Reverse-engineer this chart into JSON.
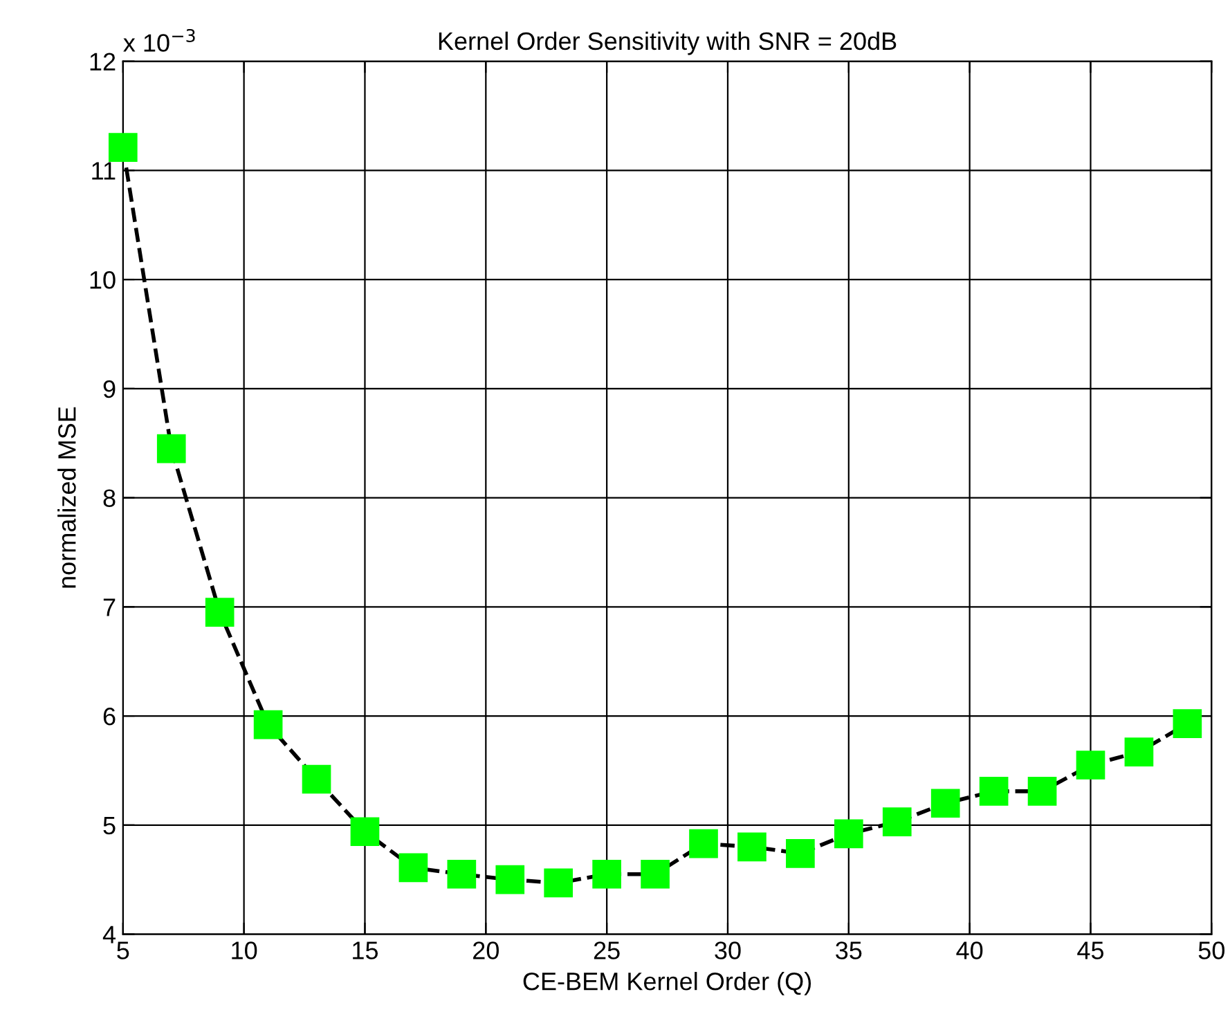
{
  "chart_data": {
    "type": "line",
    "title": "Kernel Order Sensitivity with SNR = 20dB",
    "xlabel": "CE-BEM Kernel Order (Q)",
    "ylabel": "normalized MSE",
    "annotations": [
      "x 10$^{−3}$"
    ],
    "x": [
      5,
      7,
      9,
      11,
      13,
      15,
      17,
      19,
      21,
      23,
      25,
      27,
      29,
      31,
      33,
      35,
      37,
      39,
      41,
      43,
      45,
      47,
      49
    ],
    "series": [
      {
        "color": "#00ff00",
        "values": [
          11.21,
          8.45,
          6.95,
          5.92,
          5.42,
          4.94,
          4.61,
          4.55,
          4.5,
          4.47,
          4.55,
          4.55,
          4.83,
          4.8,
          4.74,
          4.92,
          5.03,
          5.2,
          5.31,
          5.31,
          5.55,
          5.67,
          5.93
        ]
      }
    ],
    "xlim": [
      5,
      50
    ],
    "xticks": [
      5,
      10,
      15,
      20,
      25,
      30,
      35,
      40,
      45,
      50
    ],
    "ylim": [
      4,
      12
    ],
    "yticks": [
      4,
      5,
      6,
      7,
      8,
      9,
      10,
      11,
      12
    ],
    "grid": true,
    "marker": "square",
    "line_style": "dashed",
    "legend": false
  }
}
